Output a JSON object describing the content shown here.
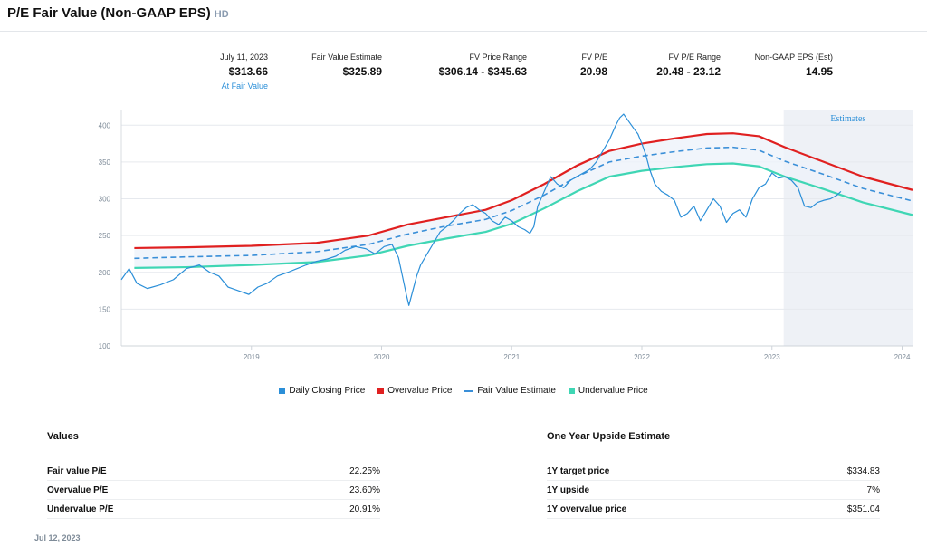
{
  "header": {
    "title": "P/E Fair Value (Non-GAAP EPS)",
    "ticker": "HD"
  },
  "stats": [
    {
      "label": "July 11, 2023",
      "value": "$313.66",
      "sub": "At Fair Value"
    },
    {
      "label": "Fair Value Estimate",
      "value": "$325.89"
    },
    {
      "label": "FV Price Range",
      "value": "$306.14 - $345.63"
    },
    {
      "label": "FV P/E",
      "value": "20.98"
    },
    {
      "label": "FV P/E Range",
      "value": "20.48 - 23.12"
    },
    {
      "label": "Non-GAAP EPS (Est)",
      "value": "14.95"
    }
  ],
  "chart_data": {
    "type": "line",
    "estimates_label": "Estimates",
    "estimates_start": 2023.09,
    "xlim": [
      2018.0,
      2024.08
    ],
    "ylim": [
      100,
      420
    ],
    "x_ticks": [
      2019,
      2020,
      2021,
      2022,
      2023,
      2024
    ],
    "x_tick_labels": [
      "2019",
      "2020",
      "2021",
      "2022",
      "2023",
      "2024"
    ],
    "y_ticks": [
      100,
      150,
      200,
      250,
      300,
      350,
      400
    ],
    "y_tick_labels": [
      "100",
      "150",
      "200",
      "250",
      "300",
      "350",
      "400"
    ],
    "colors": {
      "price": "#2b8fd8",
      "overvalue": "#e02020",
      "fair": "#3a8fd8",
      "undervalue": "#3fd6b4"
    },
    "series": [
      {
        "name": "Daily Closing Price",
        "x": [
          2018.0,
          2018.06,
          2018.12,
          2018.2,
          2018.3,
          2018.4,
          2018.5,
          2018.6,
          2018.68,
          2018.75,
          2018.82,
          2018.9,
          2018.98,
          2019.05,
          2019.12,
          2019.2,
          2019.28,
          2019.35,
          2019.42,
          2019.5,
          2019.58,
          2019.65,
          2019.72,
          2019.8,
          2019.88,
          2019.95,
          2020.02,
          2020.08,
          2020.13,
          2020.16,
          2020.19,
          2020.21,
          2020.24,
          2020.27,
          2020.3,
          2020.35,
          2020.4,
          2020.45,
          2020.5,
          2020.55,
          2020.6,
          2020.65,
          2020.7,
          2020.75,
          2020.8,
          2020.85,
          2020.9,
          2020.95,
          2021.0,
          2021.05,
          2021.1,
          2021.14,
          2021.17,
          2021.2,
          2021.25,
          2021.3,
          2021.35,
          2021.4,
          2021.45,
          2021.5,
          2021.55,
          2021.6,
          2021.65,
          2021.7,
          2021.75,
          2021.8,
          2021.83,
          2021.86,
          2021.9,
          2021.94,
          2021.97,
          2022.0,
          2022.03,
          2022.06,
          2022.1,
          2022.15,
          2022.2,
          2022.25,
          2022.3,
          2022.35,
          2022.4,
          2022.45,
          2022.5,
          2022.55,
          2022.6,
          2022.65,
          2022.7,
          2022.75,
          2022.8,
          2022.85,
          2022.9,
          2022.95,
          2023.0,
          2023.05,
          2023.1,
          2023.15,
          2023.2,
          2023.25,
          2023.3,
          2023.35,
          2023.4,
          2023.45,
          2023.5,
          2023.53
        ],
        "y": [
          190,
          205,
          185,
          178,
          183,
          190,
          205,
          210,
          200,
          195,
          180,
          175,
          170,
          180,
          185,
          195,
          200,
          205,
          210,
          215,
          218,
          222,
          230,
          235,
          232,
          225,
          235,
          238,
          220,
          195,
          170,
          155,
          175,
          195,
          210,
          225,
          240,
          255,
          262,
          270,
          280,
          288,
          292,
          285,
          280,
          270,
          265,
          275,
          270,
          262,
          258,
          253,
          262,
          290,
          310,
          330,
          320,
          315,
          325,
          330,
          335,
          340,
          350,
          365,
          380,
          400,
          410,
          415,
          405,
          395,
          388,
          375,
          360,
          340,
          320,
          310,
          305,
          298,
          275,
          280,
          290,
          270,
          285,
          300,
          290,
          268,
          280,
          285,
          275,
          300,
          315,
          320,
          335,
          328,
          330,
          325,
          315,
          290,
          288,
          295,
          298,
          300,
          305,
          310
        ]
      },
      {
        "name": "Overvalue Price",
        "x": [
          2018.1,
          2018.5,
          2019.0,
          2019.5,
          2019.9,
          2020.2,
          2020.5,
          2020.8,
          2021.0,
          2021.25,
          2021.5,
          2021.75,
          2022.0,
          2022.25,
          2022.5,
          2022.7,
          2022.9,
          2023.1,
          2023.4,
          2023.7,
          2024.08
        ],
        "y": [
          233,
          234,
          236,
          240,
          250,
          265,
          275,
          285,
          298,
          320,
          345,
          365,
          375,
          382,
          388,
          389,
          385,
          370,
          350,
          330,
          312
        ]
      },
      {
        "name": "Fair Value Estimate",
        "x": [
          2018.1,
          2018.5,
          2019.0,
          2019.5,
          2019.9,
          2020.2,
          2020.5,
          2020.8,
          2021.0,
          2021.25,
          2021.5,
          2021.75,
          2022.0,
          2022.25,
          2022.5,
          2022.7,
          2022.9,
          2023.1,
          2023.4,
          2023.7,
          2024.08
        ],
        "y": [
          219,
          221,
          223,
          228,
          238,
          252,
          263,
          272,
          284,
          305,
          330,
          350,
          358,
          364,
          369,
          370,
          366,
          351,
          333,
          314,
          297
        ]
      },
      {
        "name": "Undervalue Price",
        "x": [
          2018.1,
          2018.5,
          2019.0,
          2019.5,
          2019.9,
          2020.2,
          2020.5,
          2020.8,
          2021.0,
          2021.25,
          2021.5,
          2021.75,
          2022.0,
          2022.25,
          2022.5,
          2022.7,
          2022.9,
          2023.1,
          2023.4,
          2023.7,
          2024.08
        ],
        "y": [
          206,
          207,
          210,
          214,
          223,
          236,
          246,
          255,
          266,
          287,
          310,
          330,
          338,
          343,
          347,
          348,
          344,
          330,
          313,
          295,
          278
        ]
      }
    ]
  },
  "legend": {
    "placement": "bottom-center"
  },
  "values_panel": {
    "title": "Values",
    "rows": [
      {
        "label": "Fair value P/E",
        "value": "22.25%"
      },
      {
        "label": "Overvalue P/E",
        "value": "23.60%"
      },
      {
        "label": "Undervalue P/E",
        "value": "20.91%"
      }
    ]
  },
  "upside_panel": {
    "title": "One Year Upside Estimate",
    "rows": [
      {
        "label": "1Y target price",
        "value": "$334.83"
      },
      {
        "label": "1Y upside",
        "value": "7%"
      },
      {
        "label": "1Y overvalue price",
        "value": "$351.04"
      }
    ]
  },
  "footer": {
    "date": "Jul 12, 2023"
  }
}
